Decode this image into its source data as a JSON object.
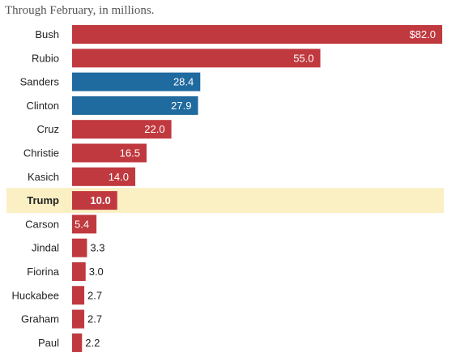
{
  "chart_data": {
    "type": "bar",
    "orientation": "horizontal",
    "subtitle": "Through February, in millions.",
    "categories": [
      "Bush",
      "Rubio",
      "Sanders",
      "Clinton",
      "Cruz",
      "Christie",
      "Kasich",
      "Trump",
      "Carson",
      "Jindal",
      "Fiorina",
      "Huckabee",
      "Graham",
      "Paul"
    ],
    "values": [
      82.0,
      55.0,
      28.4,
      27.9,
      22.0,
      16.5,
      14.0,
      10.0,
      5.4,
      3.3,
      3.0,
      2.7,
      2.7,
      2.2
    ],
    "value_labels": [
      "$82.0",
      "55.0",
      "28.4",
      "27.9",
      "22.0",
      "16.5",
      "14.0",
      "10.0",
      "5.4",
      "3.3",
      "3.0",
      "2.7",
      "2.7",
      "2.2"
    ],
    "party": [
      "republican",
      "republican",
      "democrat",
      "democrat",
      "republican",
      "republican",
      "republican",
      "republican",
      "republican",
      "republican",
      "republican",
      "republican",
      "republican",
      "republican"
    ],
    "highlight": "Trump",
    "xlim": [
      0,
      82
    ],
    "grid": false,
    "legend": "none",
    "colors": {
      "republican": "#c0393f",
      "democrat": "#1f6a9e",
      "highlight_band": "#fbefc4",
      "label_inside": "#ffffff",
      "label_outside": "#222222"
    }
  }
}
